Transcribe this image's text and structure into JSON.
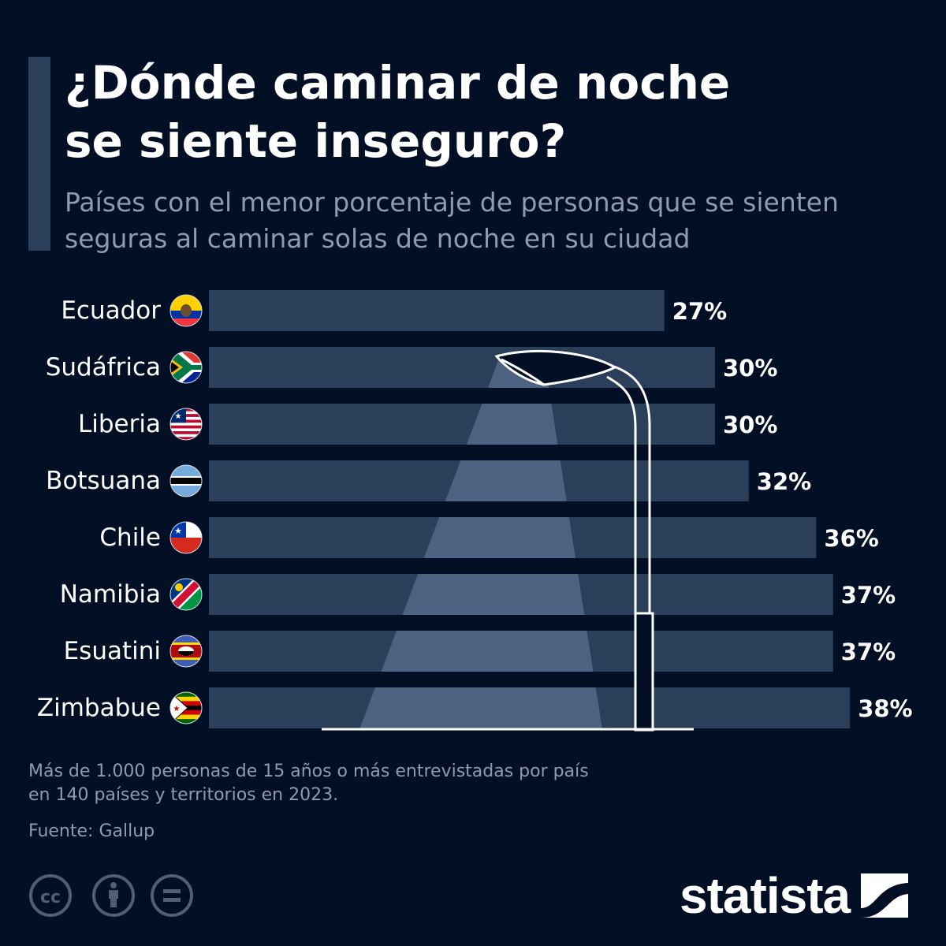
{
  "header": {
    "title_line1": "¿Dónde caminar de noche",
    "title_line2": "se siente inseguro?",
    "subtitle_line1": "Países con el menor porcentaje de personas que se sienten",
    "subtitle_line2": "seguras al caminar solas de noche en su ciudad"
  },
  "chart_data": {
    "type": "bar",
    "orientation": "horizontal",
    "categories": [
      "Ecuador",
      "Sudáfrica",
      "Liberia",
      "Botsuana",
      "Chile",
      "Namibia",
      "Esuatini",
      "Zimbabue"
    ],
    "values": [
      27,
      30,
      30,
      32,
      36,
      37,
      37,
      38
    ],
    "value_labels": [
      "27%",
      "30%",
      "30%",
      "32%",
      "36%",
      "37%",
      "37%",
      "38%"
    ],
    "flag_icons": [
      "ecuador-flag-icon",
      "south-africa-flag-icon",
      "liberia-flag-icon",
      "botswana-flag-icon",
      "chile-flag-icon",
      "namibia-flag-icon",
      "eswatini-flag-icon",
      "zimbabwe-flag-icon"
    ],
    "xlim": [
      0,
      38
    ],
    "grid": false,
    "bar_color": "#2b3f5a",
    "light_color": "#4c6280",
    "decoration": "street-lamp-icon"
  },
  "footer": {
    "note_line1": "Más de 1.000 personas de 15 años o más entrevistadas por país",
    "note_line2": "en 140 países y territorios en 2023.",
    "source": "Fuente: Gallup",
    "brand": "statista",
    "license_icons": [
      "cc-icon",
      "attribution-icon",
      "no-derivatives-icon"
    ]
  },
  "colors": {
    "background": "#020f24",
    "accent": "#2b3f5a",
    "muted_text": "#8d9cb0",
    "text": "#ffffff"
  }
}
